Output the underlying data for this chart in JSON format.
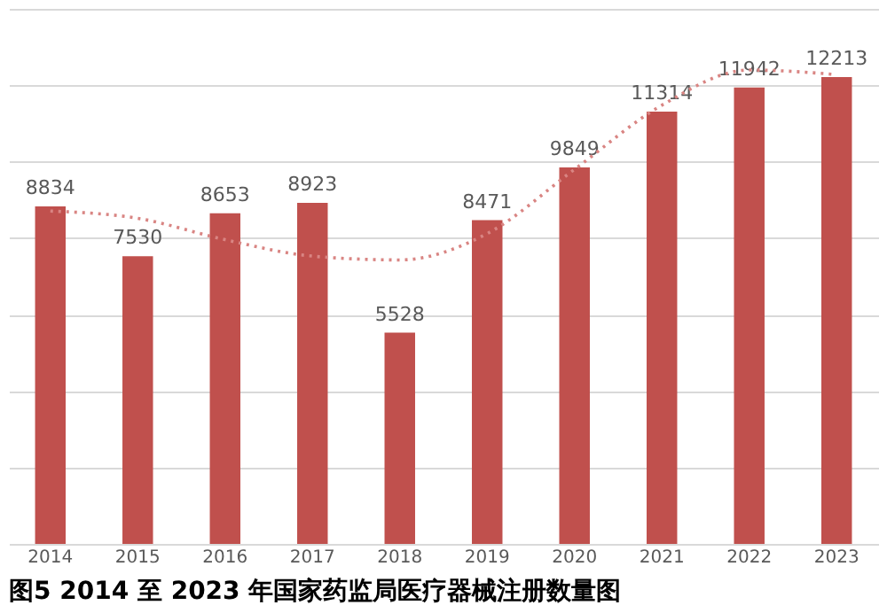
{
  "chart_data": {
    "type": "bar",
    "categories": [
      "2014",
      "2015",
      "2016",
      "2017",
      "2018",
      "2019",
      "2020",
      "2021",
      "2022",
      "2023"
    ],
    "series": [
      {
        "color": "#c0504d",
        "values": [
          8834,
          7530,
          8653,
          8923,
          5528,
          8471,
          9849,
          11314,
          11942,
          12213
        ],
        "value_labels": [
          "8834",
          "7530",
          "8653",
          "8923",
          "5528",
          "8471",
          "9849",
          "11314",
          "11942",
          "12213"
        ]
      },
      {
        "type": "line",
        "color": "#d98583",
        "line_style": "dotted",
        "marker": "none",
        "values": [
          8710,
          8520,
          7960,
          7530,
          7430,
          8120,
          9800,
          11480,
          12400,
          12280
        ]
      }
    ],
    "ylim": [
      0,
      14000
    ],
    "yticks": [
      0,
      2000,
      4000,
      6000,
      8000,
      10000,
      12000,
      14000
    ],
    "tick_labels": "x",
    "grid": "y",
    "annotations": [
      "图5 2014 至 2023 年国家药监局医疗器械注册数量图"
    ]
  }
}
